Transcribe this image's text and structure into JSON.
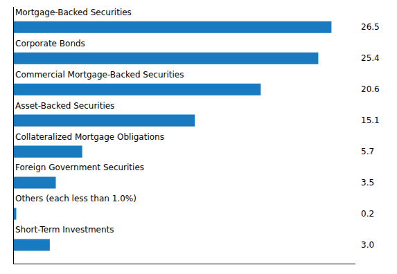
{
  "chart_data": {
    "type": "bar",
    "orientation": "horizontal",
    "categories": [
      "Short-Term Investments",
      "Others (each less than 1.0%)",
      "Foreign Government Securities",
      "Collateralized Mortgage Obligations",
      "Asset-Backed Securities",
      "Commercial Mortgage-Backed Securities",
      "Corporate Bonds",
      "Mortgage-Backed Securities"
    ],
    "values": [
      3.0,
      0.2,
      3.5,
      5.7,
      15.1,
      20.6,
      25.4,
      26.5
    ],
    "value_labels": [
      "3.0",
      "0.2",
      "3.5",
      "5.7",
      "15.1",
      "20.6",
      "25.4",
      "26.5"
    ],
    "color": "#1a7abf",
    "xlim": [
      0,
      28.5
    ],
    "data_labels": true,
    "tick_labels": false,
    "grid": false
  }
}
